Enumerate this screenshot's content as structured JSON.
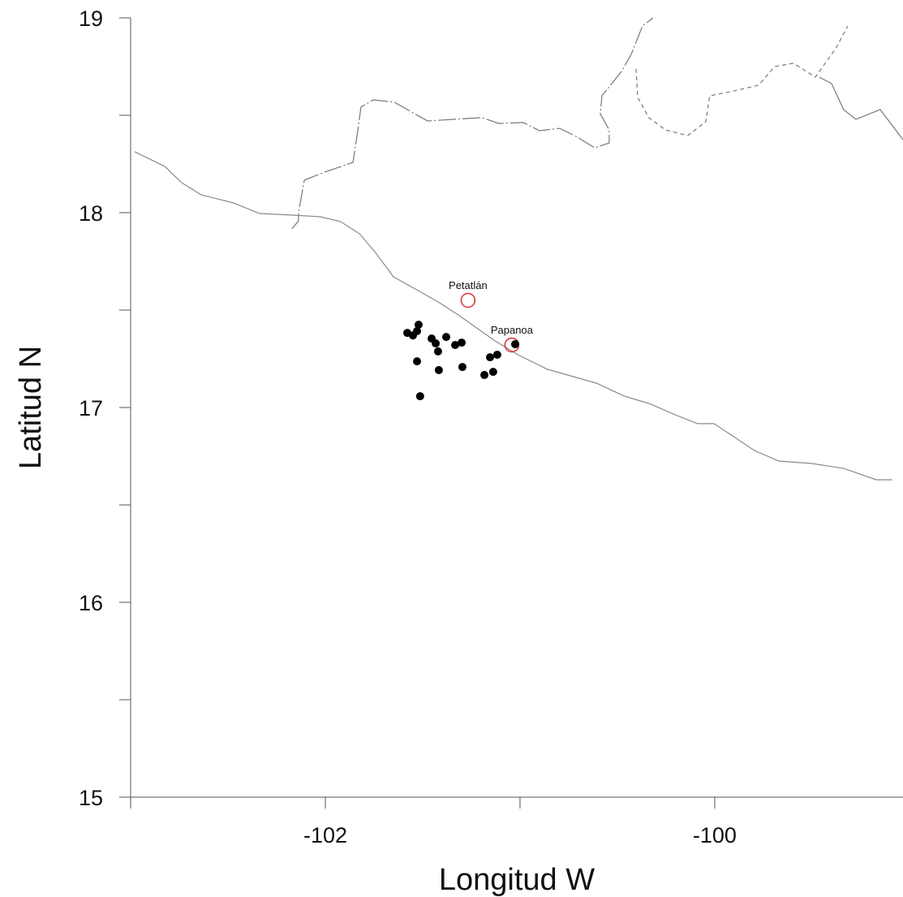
{
  "chart_data": {
    "type": "scatter",
    "xlabel": "Longitud W",
    "ylabel": "Latitud N",
    "xlim": [
      -103,
      -99.033
    ],
    "ylim": [
      15,
      19
    ],
    "xticks": [
      -102,
      -100
    ],
    "xminorticks": [
      -103,
      -101
    ],
    "yticks": [
      15,
      16,
      17,
      18,
      19
    ],
    "yminorticks": [
      15.5,
      16.5,
      17.5,
      18.5
    ],
    "points": {
      "color": "#000000",
      "x": [
        -101.579,
        -101.55,
        -101.529,
        -101.521,
        -101.529,
        -101.513,
        -101.454,
        -101.433,
        -101.421,
        -101.417,
        -101.379,
        -101.333,
        -101.3,
        -101.296,
        -101.183,
        -101.154,
        -101.138,
        -101.117,
        -101.025
      ],
      "y": [
        17.383,
        17.37,
        17.392,
        17.425,
        17.237,
        17.058,
        17.354,
        17.329,
        17.288,
        17.192,
        17.362,
        17.321,
        17.333,
        17.208,
        17.167,
        17.258,
        17.183,
        17.271,
        17.325
      ]
    },
    "places": [
      {
        "label": "Petatlán",
        "lon": -101.267,
        "lat": 17.55,
        "color": "#d9302c"
      },
      {
        "label": "Papanoa",
        "lon": -101.042,
        "lat": 17.321,
        "color": "#d9302c"
      }
    ],
    "lines": [
      {
        "style": "solid",
        "color": "#8a8a8a",
        "lon": [
          -102.979,
          -102.825,
          -102.738,
          -102.638,
          -102.471,
          -102.338,
          -102.179,
          -102.025,
          -101.921,
          -101.825,
          -101.746,
          -101.65,
          -101.546,
          -101.421,
          -101.317,
          -101.129,
          -101.004,
          -100.858,
          -100.608,
          -100.463,
          -100.338,
          -100.213,
          -100.088,
          -100.004,
          -99.921,
          -99.796,
          -99.671,
          -99.504,
          -99.338,
          -99.171,
          -99.088
        ],
        "lat": [
          18.313,
          18.238,
          18.154,
          18.092,
          18.05,
          17.996,
          17.988,
          17.979,
          17.954,
          17.892,
          17.8,
          17.671,
          17.613,
          17.542,
          17.475,
          17.342,
          17.267,
          17.196,
          17.125,
          17.058,
          17.021,
          16.967,
          16.917,
          16.917,
          16.863,
          16.779,
          16.725,
          16.713,
          16.688,
          16.629,
          16.629
        ]
      },
      {
        "style": "dashdot",
        "color": "#777777",
        "lon": [
          -102.171,
          -102.138,
          -102.138,
          -102.108,
          -102.004,
          -101.858,
          -101.833,
          -101.817,
          -101.754,
          -101.646,
          -101.475,
          -101.338,
          -101.196,
          -101.108,
          -100.983,
          -100.9,
          -100.796,
          -100.713,
          -100.617,
          -100.542,
          -100.542,
          -100.588,
          -100.579,
          -100.479,
          -100.429,
          -100.371,
          -100.317
        ],
        "lat": [
          17.917,
          17.958,
          18.0,
          18.167,
          18.208,
          18.258,
          18.425,
          18.542,
          18.579,
          18.567,
          18.471,
          18.479,
          18.488,
          18.458,
          18.463,
          18.421,
          18.433,
          18.392,
          18.333,
          18.358,
          18.425,
          18.508,
          18.6,
          18.725,
          18.813,
          18.958,
          19.0
        ]
      },
      {
        "style": "dashed",
        "color": "#777777",
        "lon": [
          -100.404,
          -100.396,
          -100.338,
          -100.254,
          -100.138,
          -100.046,
          -100.025,
          -99.921,
          -99.775,
          -99.692,
          -99.596,
          -99.483,
          -99.379,
          -99.317
        ],
        "lat": [
          18.738,
          18.592,
          18.488,
          18.425,
          18.396,
          18.467,
          18.6,
          18.621,
          18.654,
          18.75,
          18.767,
          18.696,
          18.842,
          18.958
        ]
      },
      {
        "style": "solid",
        "color": "#777777",
        "lon": [
          -99.463,
          -99.4,
          -99.338,
          -99.275,
          -99.15,
          -99.033
        ],
        "lat": [
          18.696,
          18.663,
          18.529,
          18.479,
          18.529,
          18.375
        ]
      }
    ]
  }
}
